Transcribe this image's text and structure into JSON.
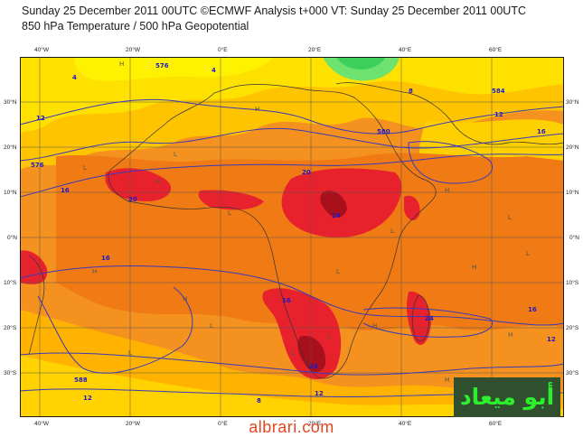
{
  "title_line1": "Sunday 25 December 2011 00UTC ©ECMWF Analysis t+000 VT: Sunday 25 December 2011 00UTC",
  "title_line2": "850 hPa Temperature / 500 hPa Geopotential",
  "lon_ticks": [
    "40°W",
    "20°W",
    "0°E",
    "20°E",
    "40°E",
    "60°E"
  ],
  "lat_ticks": [
    "30°N",
    "20°N",
    "10°N",
    "0°N",
    "10°S",
    "20°S",
    "30°S"
  ],
  "contour_labels": [
    "4",
    "12",
    "16",
    "20",
    "24",
    "8",
    "576",
    "580",
    "584",
    "588"
  ],
  "watermark_badge": "أبو ميعاد",
  "watermark_site": "albrari.com",
  "colors": {
    "frame": "#1a1a1a",
    "contour": "#3a3ab8",
    "badge_bg": "#2f4f2f",
    "badge_text": "#2cf02c",
    "site_text": "#e8441f"
  }
}
